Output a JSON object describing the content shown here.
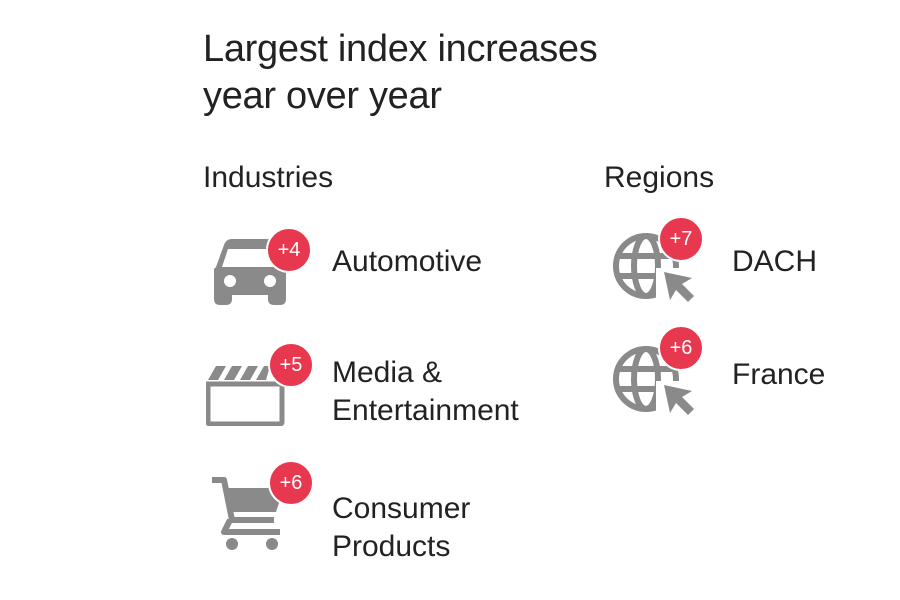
{
  "title": "Largest index increases\nyear over year",
  "industries": {
    "heading": "Industries",
    "items": [
      {
        "label": "Automotive",
        "badge": "+4",
        "icon": "car-icon"
      },
      {
        "label": "Media &\nEntertainment",
        "badge": "+5",
        "icon": "clapperboard-icon"
      },
      {
        "label": "Consumer\nProducts",
        "badge": "+6",
        "icon": "shopping-cart-icon"
      }
    ]
  },
  "regions": {
    "heading": "Regions",
    "items": [
      {
        "label": "DACH",
        "badge": "+7",
        "icon": "globe-cursor-icon"
      },
      {
        "label": "France",
        "badge": "+6",
        "icon": "globe-cursor-icon"
      }
    ]
  },
  "colors": {
    "badge": "#e8384f",
    "icon": "#8a8a8a",
    "text": "#222222"
  }
}
